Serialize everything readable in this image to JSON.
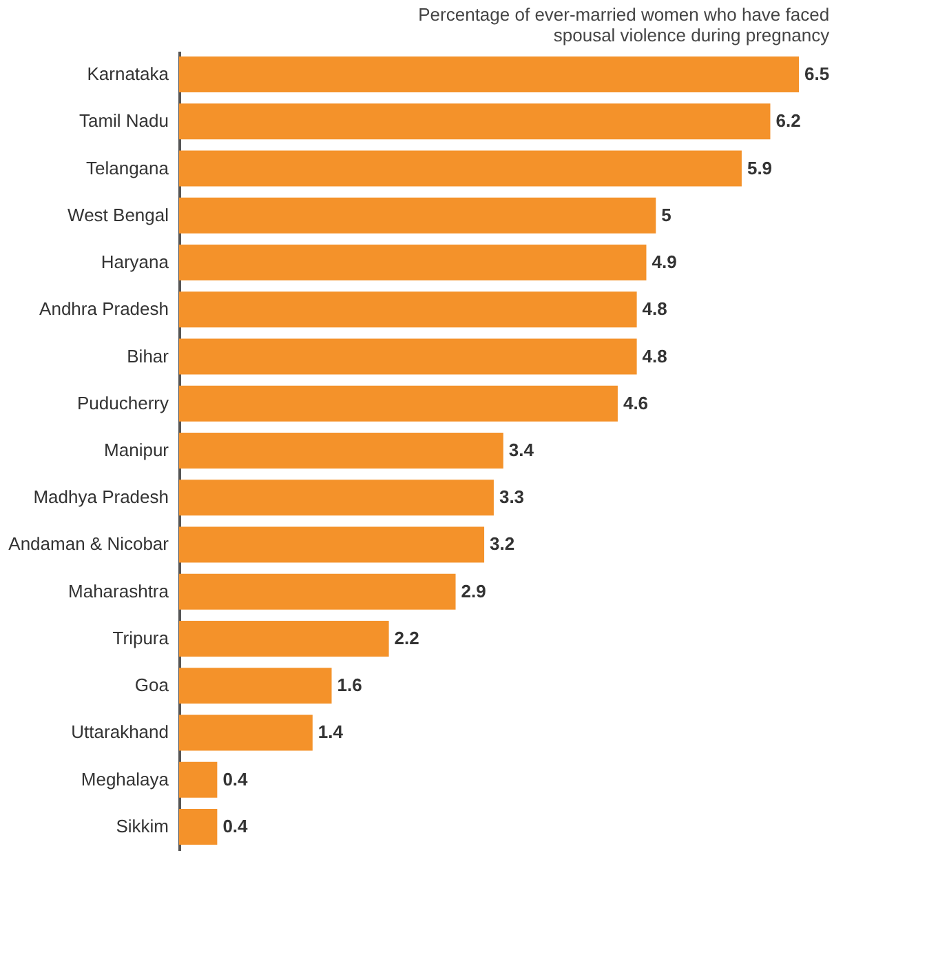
{
  "chart_data": {
    "type": "bar",
    "orientation": "horizontal",
    "subtitle": "Percentage of ever-married women who have faced spousal violence during pregnancy",
    "categories": [
      "Karnataka",
      "Tamil Nadu",
      "Telangana",
      "West Bengal",
      "Haryana",
      "Andhra Pradesh",
      "Bihar",
      "Puducherry",
      "Manipur",
      "Madhya Pradesh",
      "Andaman & Nicobar",
      "Maharashtra",
      "Tripura",
      "Goa",
      "Uttarakhand",
      "Meghalaya",
      "Sikkim"
    ],
    "values": [
      6.5,
      6.2,
      5.9,
      5,
      4.9,
      4.8,
      4.8,
      4.6,
      3.4,
      3.3,
      3.2,
      2.9,
      2.2,
      1.6,
      1.4,
      0.4,
      0.4
    ],
    "color": "#f4922a",
    "data_labels": true
  }
}
